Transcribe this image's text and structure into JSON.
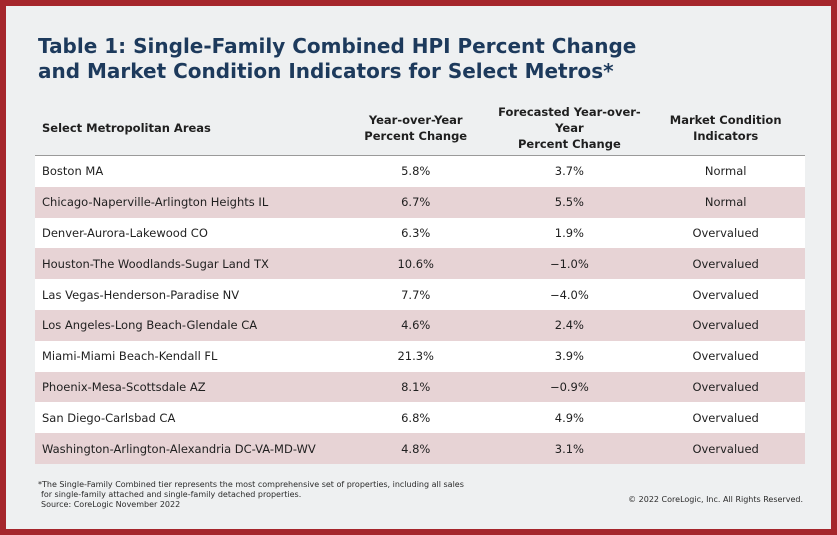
{
  "title_line1": "Table 1: Single-Family Combined HPI Percent Change",
  "title_line2": "and Market Condition Indicators for Select Metros*",
  "headers": {
    "area": "Select Metropolitan Areas",
    "yoy_line1": "Year-over-Year",
    "yoy_line2": "Percent Change",
    "forecast_line1": "Forecasted Year-over-Year",
    "forecast_line2": "Percent Change",
    "market_line1": "Market Condition",
    "market_line2": "Indicators"
  },
  "rows": [
    {
      "area": "Boston MA",
      "yoy": "5.8%",
      "forecast": "3.7%",
      "market": "Normal"
    },
    {
      "area": "Chicago-Naperville-Arlington Heights IL",
      "yoy": "6.7%",
      "forecast": "5.5%",
      "market": "Normal"
    },
    {
      "area": "Denver-Aurora-Lakewood CO",
      "yoy": "6.3%",
      "forecast": "1.9%",
      "market": "Overvalued"
    },
    {
      "area": "Houston-The Woodlands-Sugar Land TX",
      "yoy": "10.6%",
      "forecast": "−1.0%",
      "market": "Overvalued"
    },
    {
      "area": "Las Vegas-Henderson-Paradise NV",
      "yoy": "7.7%",
      "forecast": "−4.0%",
      "market": "Overvalued"
    },
    {
      "area": "Los Angeles-Long Beach-Glendale CA",
      "yoy": "4.6%",
      "forecast": "2.4%",
      "market": "Overvalued"
    },
    {
      "area": "Miami-Miami Beach-Kendall FL",
      "yoy": "21.3%",
      "forecast": "3.9%",
      "market": "Overvalued"
    },
    {
      "area": "Phoenix-Mesa-Scottsdale AZ",
      "yoy": "8.1%",
      "forecast": "−0.9%",
      "market": "Overvalued"
    },
    {
      "area": "San Diego-Carlsbad CA",
      "yoy": "6.8%",
      "forecast": "4.9%",
      "market": "Overvalued"
    },
    {
      "area": "Washington-Arlington-Alexandria DC-VA-MD-WV",
      "yoy": "4.8%",
      "forecast": "3.1%",
      "market": "Overvalued"
    }
  ],
  "footnote_line1": "*The Single-Family Combined tier represents the most comprehensive set of properties, including all sales",
  "footnote_line2": "for single-family attached and single-family detached properties.",
  "footnote_line3": "Source: CoreLogic November 2022",
  "copyright": "© 2022 CoreLogic, Inc. All Rights Reserved.",
  "colors": {
    "border": "#a5262c",
    "title": "#1d3a5c",
    "stripe": "#e7d3d5",
    "panel": "#eef0f1"
  }
}
